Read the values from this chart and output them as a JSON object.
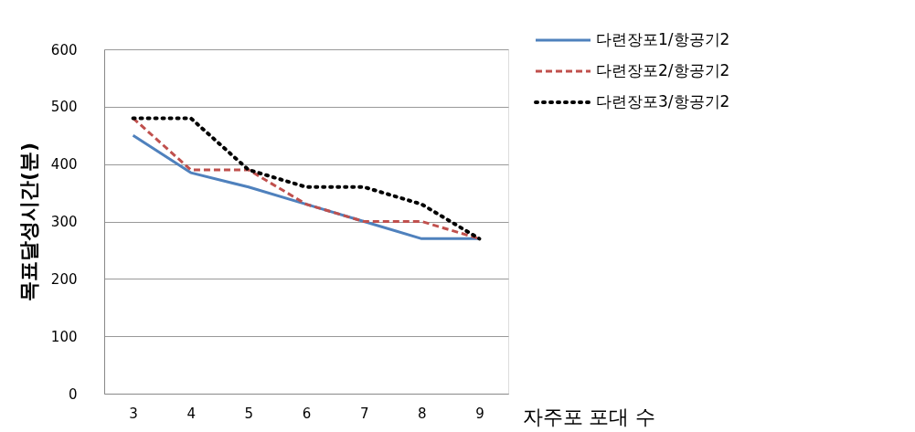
{
  "chart_data": {
    "type": "line",
    "xlabel": "자주포 포대 수",
    "ylabel": "목표달성시간(분)",
    "categories": [
      "3",
      "4",
      "5",
      "6",
      "7",
      "8",
      "9"
    ],
    "series": [
      {
        "name": "다련장포1/항공기2",
        "color": "#4f81bd",
        "line_style": "solid",
        "values": [
          450,
          385,
          360,
          330,
          300,
          270,
          270
        ]
      },
      {
        "name": "다련장포2/항공기2",
        "color": "#c0504d",
        "line_style": "dashed",
        "values": [
          480,
          390,
          390,
          330,
          300,
          300,
          270
        ]
      },
      {
        "name": "다련장포3/항공기2",
        "color": "#000000",
        "line_style": "dotted",
        "values": [
          480,
          480,
          390,
          360,
          360,
          330,
          270
        ]
      }
    ],
    "ylim": [
      0,
      600
    ],
    "yticks": [
      0,
      100,
      200,
      300,
      400,
      500,
      600
    ],
    "grid": "y",
    "legend": "top right",
    "marker": "none"
  }
}
